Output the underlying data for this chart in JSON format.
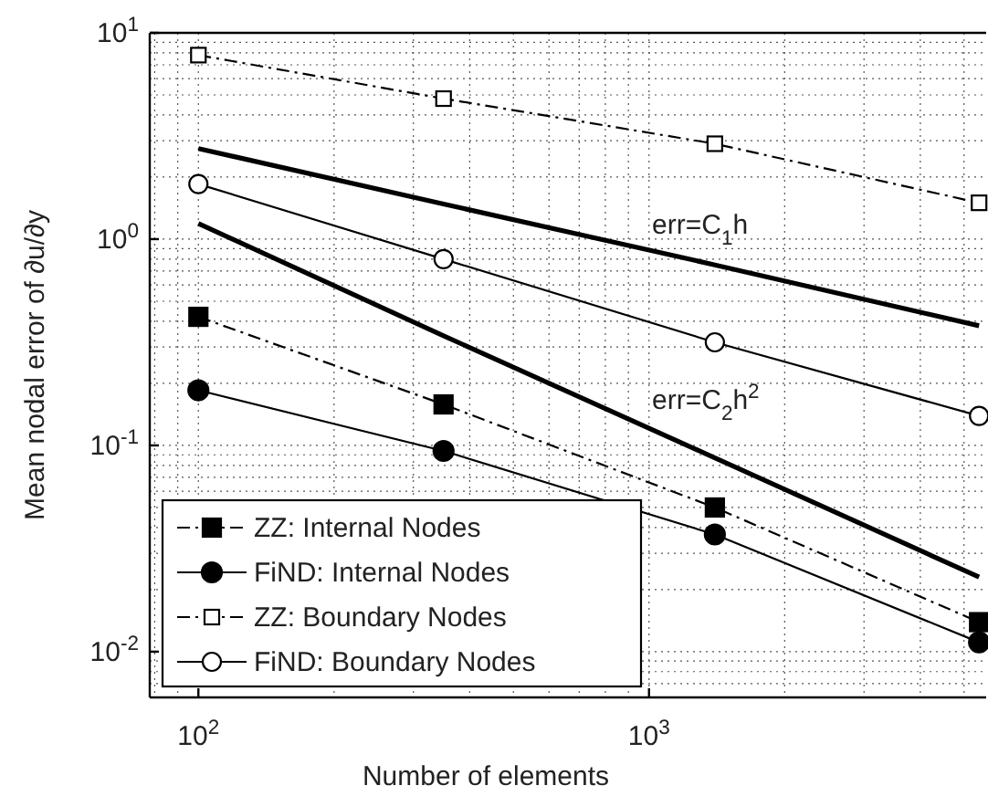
{
  "chart_data": {
    "type": "line",
    "xlabel": "Number of elements",
    "ylabel": "Mean nodal error of ∂u/∂y",
    "log": "xy",
    "grid": true,
    "legend": "bottom left",
    "xlim": [
      78,
      5600
    ],
    "ylim": [
      0.006,
      10
    ],
    "xticks": [
      {
        "value": 100,
        "label": "10$^{2}$"
      },
      {
        "value": 1000,
        "label": "10$^{3}$"
      }
    ],
    "yticks": [
      {
        "value": 0.01,
        "label": "10$^{-2}$"
      },
      {
        "value": 0.1,
        "label": "10$^{-1}$"
      },
      {
        "value": 1,
        "label": "10$^{0}$"
      },
      {
        "value": 10,
        "label": "10$^{1}$"
      }
    ],
    "x": [
      100,
      350,
      1400,
      5400
    ],
    "series": [
      {
        "name": "ZZ: Internal Nodes",
        "color": "#000000",
        "marker": "square",
        "line_style": "dashdot",
        "values": [
          0.42,
          0.158,
          0.05,
          0.0139
        ]
      },
      {
        "name": "FiND: Internal Nodes",
        "color": "#000000",
        "marker": "circle",
        "line_style": "solid",
        "values": [
          0.185,
          0.094,
          0.037,
          0.0111
        ]
      },
      {
        "name": "ZZ: Boundary Nodes",
        "color": "#000000",
        "marker": "square-open",
        "line_style": "dashdot",
        "values": [
          7.8,
          4.8,
          2.9,
          1.5
        ]
      },
      {
        "name": "FiND: Boundary Nodes",
        "color": "#000000",
        "marker": "circle-open",
        "line_style": "solid",
        "values": [
          1.85,
          0.8,
          0.316,
          0.139
        ]
      },
      {
        "type": "line",
        "color": "#000000",
        "marker": "none",
        "line_style": "solid",
        "values": [
          2.75,
          1.48,
          0.75,
          0.38
        ]
      },
      {
        "type": "line",
        "color": "#000000",
        "marker": "none",
        "line_style": "solid",
        "values": [
          1.19,
          0.34,
          0.087,
          0.023
        ]
      }
    ],
    "annotations": [
      "err=C$_{1}$h",
      "err=C$_{2}$h$^{2}$"
    ]
  }
}
